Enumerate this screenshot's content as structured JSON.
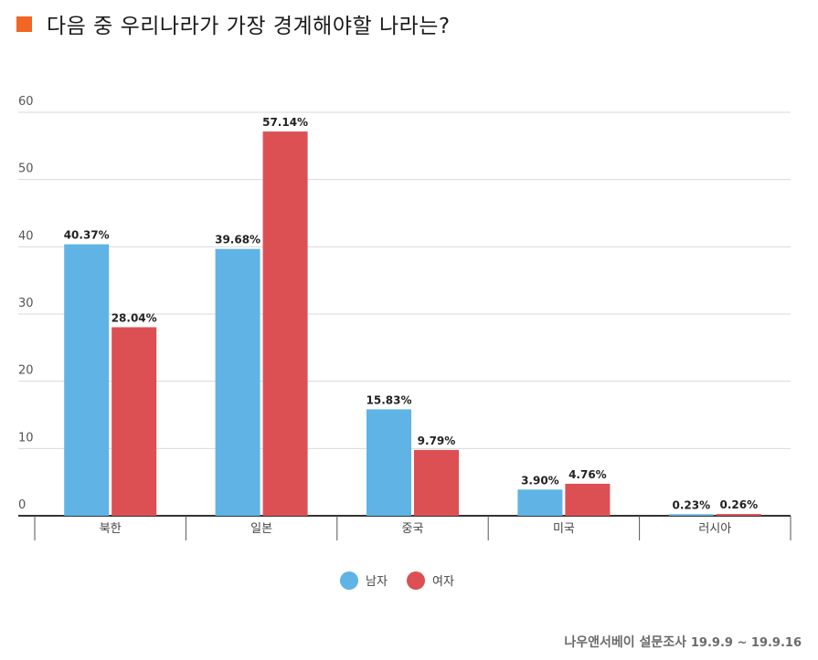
{
  "title": "다음 중 우리나라가 가장 경계해야할 나라는?",
  "title_marker_color": "#f26522",
  "source": {
    "label": "나우앤서베이 설문조사",
    "date_range": "19.9.9 ~ 19.9.16"
  },
  "chart_data": {
    "type": "bar",
    "categories": [
      "북한",
      "일본",
      "중국",
      "미국",
      "러시아"
    ],
    "series": [
      {
        "name": "남자",
        "color": "#5fb4e5",
        "values": [
          40.37,
          39.68,
          15.83,
          3.9,
          0.23
        ],
        "labels": [
          "40.37%",
          "39.68%",
          "15.83%",
          "3.90%",
          "0.23%"
        ]
      },
      {
        "name": "여자",
        "color": "#dc5054",
        "values": [
          28.04,
          57.14,
          9.79,
          4.76,
          0.26
        ],
        "labels": [
          "28.04%",
          "57.14%",
          "9.79%",
          "4.76%",
          "0.26%"
        ]
      }
    ],
    "ylim": [
      0,
      60
    ],
    "yticks": [
      0,
      10,
      20,
      30,
      40,
      50,
      60
    ],
    "grid": true,
    "legend_position": "bottom"
  }
}
